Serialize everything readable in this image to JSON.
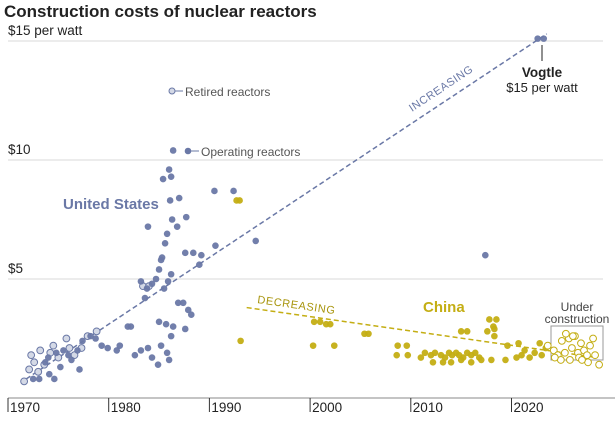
{
  "chart_data": {
    "type": "scatter",
    "title": "Construction costs of nuclear reactors",
    "xlabel": "",
    "ylabel": "",
    "xlim": [
      1970,
      2029
    ],
    "ylim": [
      0,
      15
    ],
    "grid": true,
    "y_ticks": [
      {
        "value": 15,
        "label": "$15 per watt"
      },
      {
        "value": 10,
        "label": "$10"
      },
      {
        "value": 5,
        "label": "$5"
      }
    ],
    "x_ticks": [
      {
        "value": 1970,
        "label": "1970"
      },
      {
        "value": 1980,
        "label": "1980"
      },
      {
        "value": 1990,
        "label": "1990"
      },
      {
        "value": 2000,
        "label": "2000"
      },
      {
        "value": 2010,
        "label": "2010"
      },
      {
        "value": 2020,
        "label": "2020"
      }
    ],
    "colors": {
      "us": "#6a78a6",
      "china": "#c4ae14",
      "retired_fill": "#d4d9e6",
      "under_construction_fill": "#ffffff",
      "grid": "#e5e5e5",
      "axis": "#888888"
    },
    "legend": [
      {
        "label": "Retired reactors",
        "marker": "hollow-circle"
      },
      {
        "label": "Operating reactors",
        "marker": "filled-circle"
      }
    ],
    "annotations": {
      "us_label": "United States",
      "china_label": "China",
      "increasing_label": "INCREASING",
      "decreasing_label": "DECREASING",
      "vogtle_name": "Vogtle",
      "vogtle_value": "$15 per watt",
      "under_construction_line1": "Under",
      "under_construction_line2": "construction"
    },
    "trend_lines": [
      {
        "name": "increasing",
        "series": "United States",
        "from": [
          1971.8,
          0.8
        ],
        "to": [
          2023.5,
          15.3
        ]
      },
      {
        "name": "decreasing",
        "series": "China",
        "from": [
          1993.7,
          3.8
        ],
        "to": [
          2028.5,
          1.7
        ]
      }
    ],
    "series": [
      {
        "name": "United States - retired",
        "status": "retired",
        "country": "United States",
        "points": [
          [
            1971.6,
            0.7
          ],
          [
            1972.1,
            1.2
          ],
          [
            1972.3,
            1.8
          ],
          [
            1973.0,
            1.1
          ],
          [
            1973.2,
            2.0
          ],
          [
            1973.6,
            1.4
          ],
          [
            1974.2,
            1.9
          ],
          [
            1974.5,
            2.2
          ],
          [
            1975.0,
            1.7
          ],
          [
            1975.8,
            2.5
          ],
          [
            1976.6,
            1.8
          ],
          [
            1977.3,
            2.1
          ],
          [
            1977.9,
            2.6
          ],
          [
            1978.8,
            2.8
          ],
          [
            1983.4,
            4.7
          ],
          [
            1984.0,
            4.7
          ],
          [
            1972.6,
            1.5
          ],
          [
            1976.1,
            2.1
          ]
        ]
      },
      {
        "name": "United States - operating",
        "status": "operating",
        "country": "United States",
        "points": [
          [
            1972.5,
            0.8
          ],
          [
            1973.1,
            0.8
          ],
          [
            1974.1,
            1.0
          ],
          [
            1974.6,
            0.8
          ],
          [
            1973.7,
            1.5
          ],
          [
            1974.0,
            1.7
          ],
          [
            1974.8,
            1.9
          ],
          [
            1975.2,
            1.3
          ],
          [
            1975.5,
            2.0
          ],
          [
            1976.0,
            1.8
          ],
          [
            1976.3,
            1.6
          ],
          [
            1976.9,
            2.0
          ],
          [
            1977.1,
            1.2
          ],
          [
            1977.4,
            2.4
          ],
          [
            1978.2,
            2.6
          ],
          [
            1978.7,
            2.5
          ],
          [
            1979.3,
            2.2
          ],
          [
            1979.9,
            2.1
          ],
          [
            1981.1,
            2.2
          ],
          [
            1981.9,
            3.0
          ],
          [
            1982.2,
            3.0
          ],
          [
            1980.8,
            2.0
          ],
          [
            1982.6,
            1.8
          ],
          [
            1983.2,
            2.0
          ],
          [
            1984.3,
            1.7
          ],
          [
            1984.9,
            1.4
          ],
          [
            1983.9,
            2.1
          ],
          [
            1985.8,
            1.9
          ],
          [
            1985.2,
            2.2
          ],
          [
            1986.0,
            1.6
          ],
          [
            1985.0,
            3.2
          ],
          [
            1985.7,
            3.1
          ],
          [
            1986.4,
            3.0
          ],
          [
            1987.6,
            2.9
          ],
          [
            1986.2,
            2.6
          ],
          [
            1983.6,
            4.2
          ],
          [
            1983.2,
            4.9
          ],
          [
            1983.8,
            4.6
          ],
          [
            1984.3,
            4.8
          ],
          [
            1985.0,
            5.4
          ],
          [
            1985.5,
            4.6
          ],
          [
            1985.9,
            4.9
          ],
          [
            1986.2,
            5.2
          ],
          [
            1986.9,
            4.0
          ],
          [
            1987.4,
            4.0
          ],
          [
            1987.9,
            3.7
          ],
          [
            1988.2,
            3.5
          ],
          [
            1984.7,
            5.0
          ],
          [
            1985.3,
            5.9
          ],
          [
            1985.6,
            6.5
          ],
          [
            1985.8,
            6.9
          ],
          [
            1986.8,
            7.2
          ],
          [
            1987.6,
            6.1
          ],
          [
            1986.3,
            7.5
          ],
          [
            1986.1,
            8.3
          ],
          [
            1985.4,
            9.2
          ],
          [
            1986.0,
            9.6
          ],
          [
            1986.2,
            9.3
          ],
          [
            1987.0,
            8.4
          ],
          [
            1987.7,
            7.6
          ],
          [
            1988.4,
            6.1
          ],
          [
            1989.0,
            5.6
          ],
          [
            1989.2,
            6.0
          ],
          [
            1983.9,
            7.2
          ],
          [
            1985.2,
            5.8
          ],
          [
            1990.5,
            8.7
          ],
          [
            1990.6,
            6.4
          ],
          [
            1986.4,
            10.4
          ],
          [
            1992.4,
            8.7
          ],
          [
            1994.6,
            6.6
          ],
          [
            2017.4,
            6.0
          ],
          [
            2022.6,
            15.1
          ],
          [
            2023.2,
            15.1
          ]
        ]
      },
      {
        "name": "China - operating",
        "status": "operating",
        "country": "China",
        "points": [
          [
            1992.7,
            8.3
          ],
          [
            1993.0,
            8.3
          ],
          [
            1993.1,
            2.4
          ],
          [
            2000.4,
            3.2
          ],
          [
            2001.0,
            3.2
          ],
          [
            2001.6,
            3.1
          ],
          [
            2002.0,
            3.1
          ],
          [
            2000.3,
            2.2
          ],
          [
            2002.4,
            2.2
          ],
          [
            2005.4,
            2.7
          ],
          [
            2005.8,
            2.7
          ],
          [
            2008.7,
            2.2
          ],
          [
            2009.6,
            2.2
          ],
          [
            2008.6,
            1.8
          ],
          [
            2009.7,
            1.8
          ],
          [
            2011.4,
            1.9
          ],
          [
            2011.0,
            1.7
          ],
          [
            2012.0,
            1.8
          ],
          [
            2012.4,
            1.9
          ],
          [
            2013.0,
            1.8
          ],
          [
            2013.4,
            1.7
          ],
          [
            2013.8,
            1.9
          ],
          [
            2014.1,
            1.8
          ],
          [
            2014.5,
            1.9
          ],
          [
            2014.8,
            1.8
          ],
          [
            2015.2,
            1.7
          ],
          [
            2015.6,
            1.9
          ],
          [
            2016.0,
            1.8
          ],
          [
            2016.4,
            1.9
          ],
          [
            2016.8,
            1.7
          ],
          [
            2012.2,
            1.5
          ],
          [
            2013.2,
            1.5
          ],
          [
            2014.0,
            1.5
          ],
          [
            2015.0,
            1.6
          ],
          [
            2016.0,
            1.5
          ],
          [
            2017.0,
            1.6
          ],
          [
            2018.0,
            1.6
          ],
          [
            2019.4,
            1.6
          ],
          [
            2020.5,
            1.7
          ],
          [
            2021.0,
            1.8
          ],
          [
            2021.8,
            1.7
          ],
          [
            2022.3,
            1.9
          ],
          [
            2023.0,
            1.8
          ],
          [
            2015.0,
            2.8
          ],
          [
            2015.6,
            2.8
          ],
          [
            2017.6,
            2.8
          ],
          [
            2018.2,
            3.0
          ],
          [
            2018.3,
            2.6
          ],
          [
            2017.8,
            3.3
          ],
          [
            2018.5,
            3.3
          ],
          [
            2018.3,
            2.9
          ],
          [
            2019.6,
            2.2
          ],
          [
            2020.7,
            2.3
          ],
          [
            2021.3,
            2.0
          ],
          [
            2022.8,
            2.3
          ],
          [
            2023.4,
            2.1
          ]
        ]
      },
      {
        "name": "China - under construction",
        "status": "under construction",
        "country": "China",
        "points": [
          [
            2023.6,
            2.2
          ],
          [
            2024.2,
            2.0
          ],
          [
            2024.6,
            1.8
          ],
          [
            2025.0,
            2.4
          ],
          [
            2025.3,
            1.9
          ],
          [
            2025.7,
            2.5
          ],
          [
            2026.0,
            2.1
          ],
          [
            2026.3,
            2.6
          ],
          [
            2026.6,
            1.9
          ],
          [
            2026.9,
            2.3
          ],
          [
            2027.2,
            2.0
          ],
          [
            2027.5,
            1.8
          ],
          [
            2027.8,
            2.2
          ],
          [
            2028.1,
            2.5
          ],
          [
            2024.9,
            1.6
          ],
          [
            2025.8,
            1.6
          ],
          [
            2026.7,
            1.7
          ],
          [
            2027.6,
            1.5
          ],
          [
            2028.3,
            1.8
          ],
          [
            2028.7,
            1.4
          ],
          [
            2024.3,
            1.7
          ],
          [
            2025.4,
            2.7
          ],
          [
            2026.1,
            2.6
          ],
          [
            2027.0,
            1.6
          ]
        ]
      }
    ]
  }
}
